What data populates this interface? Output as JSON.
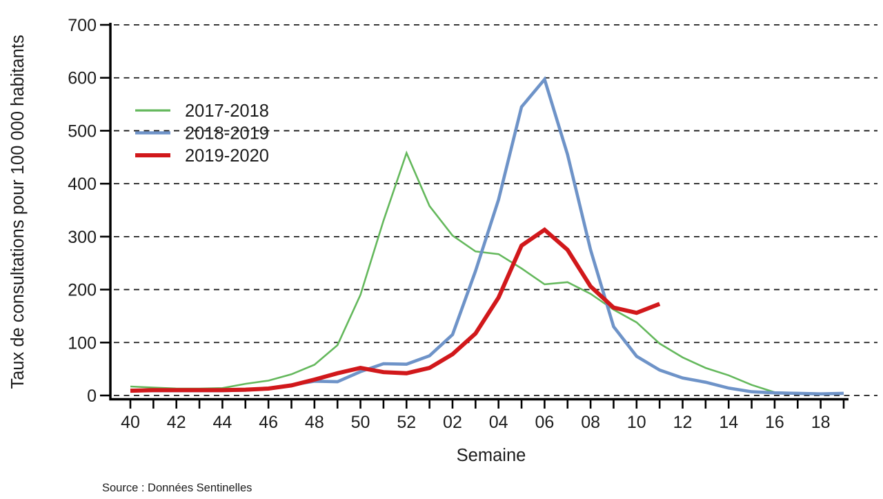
{
  "figure": {
    "background": "#ffffff",
    "axis_color": "#000000",
    "grid_color": "#1a1a1a",
    "text_color": "#1c1c1c",
    "source_color": "#3c3c3c"
  },
  "chart_data": {
    "type": "line",
    "title": "",
    "xlabel": "Semaine",
    "ylabel": "Taux de consultations pour 100 000 habitants",
    "source": "Source : Données Sentinelles",
    "categories": [
      "40",
      "41",
      "42",
      "43",
      "44",
      "45",
      "46",
      "47",
      "48",
      "49",
      "50",
      "51",
      "52",
      "01",
      "02",
      "03",
      "04",
      "05",
      "06",
      "07",
      "08",
      "09",
      "10",
      "11",
      "12",
      "13",
      "14",
      "15",
      "16",
      "17",
      "18",
      "19"
    ],
    "x_labels_shown": [
      "40",
      "42",
      "44",
      "46",
      "48",
      "50",
      "52",
      "02",
      "04",
      "06",
      "08",
      "10",
      "12",
      "14",
      "16",
      "18"
    ],
    "x_label_every": 2,
    "yticks": [
      0,
      100,
      200,
      300,
      400,
      500,
      600,
      700
    ],
    "ylim": [
      0,
      700
    ],
    "grid": "horizontal-dashed",
    "legend_position": "upper-left-inside",
    "series": [
      {
        "name": "2017-2018",
        "color": "#64b85c",
        "width": 2.6,
        "values": [
          17,
          15,
          13,
          13,
          14,
          22,
          28,
          40,
          58,
          95,
          190,
          330,
          458,
          358,
          302,
          272,
          267,
          240,
          210,
          214,
          192,
          162,
          138,
          98,
          72,
          52,
          38,
          20,
          6,
          5,
          4,
          3
        ]
      },
      {
        "name": "2018-2019",
        "color": "#6e93c8",
        "width": 4.6,
        "values": [
          10,
          9,
          9,
          9,
          9,
          10,
          13,
          20,
          27,
          26,
          45,
          60,
          59,
          75,
          115,
          235,
          370,
          545,
          597,
          455,
          275,
          130,
          74,
          48,
          33,
          25,
          14,
          7,
          5,
          4,
          3,
          4
        ]
      },
      {
        "name": "2019-2020",
        "color": "#d1181b",
        "width": 6,
        "values": [
          9,
          10,
          10,
          10,
          10,
          11,
          13,
          19,
          30,
          42,
          52,
          44,
          42,
          52,
          78,
          117,
          185,
          283,
          313,
          275,
          206,
          166,
          156,
          173,
          null,
          null,
          null,
          null,
          null,
          null,
          null,
          null
        ]
      }
    ]
  }
}
